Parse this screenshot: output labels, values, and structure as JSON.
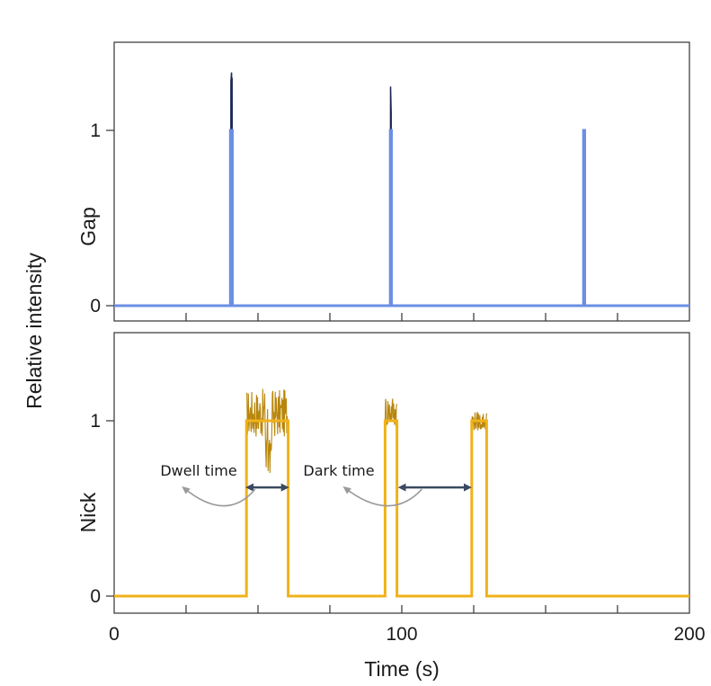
{
  "chart_data": {
    "type": "line",
    "xlabel": "Time (s)",
    "ylabel": "Relative intensity",
    "xlim": [
      0,
      200
    ],
    "x_ticks": [
      0,
      100,
      200
    ],
    "x_tick_labels": [
      "0",
      "100",
      "200"
    ],
    "x_minor_ticks": [
      25,
      50,
      75,
      100,
      125,
      150,
      175
    ],
    "panels": [
      {
        "id": "gap",
        "ylabel": "Gap",
        "ylim": [
          -0.02,
          1.5
        ],
        "y_ticks": [
          0,
          1
        ],
        "y_tick_labels": [
          "0",
          "1"
        ],
        "colors": {
          "idealized": "#6b8fe3",
          "raw": "#1b2a55"
        },
        "series": [
          {
            "role": "raw",
            "x": [
              0,
              40.5,
              40.6,
              40.8,
              40.9,
              41.0,
              41.1,
              96.0,
              96.1,
              96.3,
              96.4,
              163.2,
              163.3,
              163.5,
              163.6,
              200
            ],
            "y": [
              0,
              0,
              1.28,
              1.33,
              1.2,
              1.3,
              0,
              0,
              1.25,
              1.1,
              0,
              0,
              1.0,
              0.98,
              0,
              0
            ]
          },
          {
            "role": "idealized",
            "x": [
              0,
              40.4,
              40.4,
              41.1,
              41.1,
              96.0,
              96.0,
              96.4,
              96.4,
              163.2,
              163.2,
              163.6,
              163.6,
              200
            ],
            "y": [
              0,
              0,
              1,
              1,
              0,
              0,
              1,
              1,
              0,
              0,
              1,
              1,
              0,
              0
            ]
          }
        ]
      },
      {
        "id": "nick",
        "ylabel": "Nick",
        "ylim": [
          -0.02,
          1.45
        ],
        "y_ticks": [
          0,
          1
        ],
        "y_tick_labels": [
          "0",
          "1"
        ],
        "colors": {
          "idealized": "#f0b21a",
          "raw": "#b8860b"
        },
        "raw_segments": [
          {
            "x_start": 46.0,
            "x_end": 60.5,
            "level": 1.0,
            "amp": 0.2
          },
          {
            "x_start": 94.2,
            "x_end": 98.3,
            "level": 1.03,
            "amp": 0.14
          },
          {
            "x_start": 124.3,
            "x_end": 129.5,
            "level": 0.98,
            "amp": 0.08
          }
        ],
        "series": [
          {
            "role": "idealized",
            "x": [
              0,
              46.0,
              46.0,
              60.5,
              60.5,
              94.2,
              94.2,
              98.3,
              98.3,
              124.3,
              124.3,
              129.5,
              129.5,
              200
            ],
            "y": [
              0,
              0,
              1,
              1,
              0,
              0,
              1,
              1,
              0,
              0,
              1,
              1,
              0,
              0
            ]
          }
        ],
        "annotations": [
          {
            "text": "Dwell time",
            "text_x": 52,
            "text_y": 0.72,
            "arrow_x": [
              46.5,
              60.0
            ],
            "arrow_y": 0.62,
            "curve_from_x": 49,
            "curve_to_x": 24
          },
          {
            "text": "Dark time",
            "text_x": 84.5,
            "text_y": 0.72,
            "arrow_x": [
              99.5,
              123.5
            ],
            "arrow_y": 0.62,
            "curve_from_x": 107,
            "curve_to_x": 80
          }
        ]
      }
    ]
  }
}
